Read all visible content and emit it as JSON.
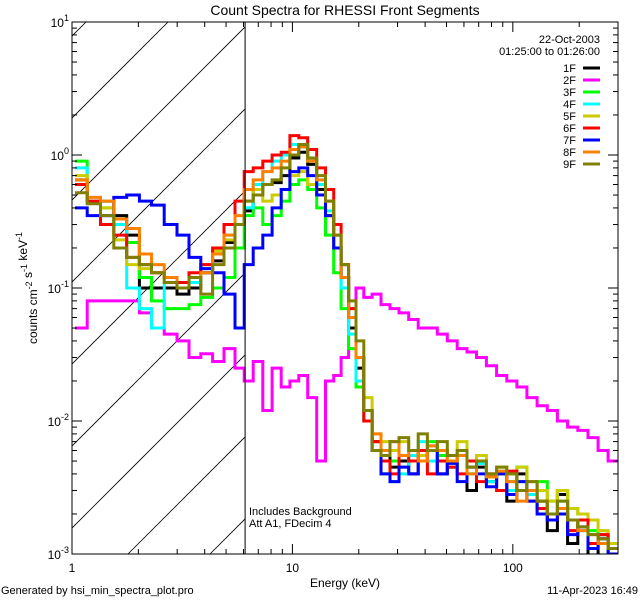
{
  "chart_data": {
    "type": "line",
    "title": "Count Spectra for RHESSI Front Segments",
    "xlabel": "Energy (keV)",
    "ylabel": {
      "parts": [
        [
          "counts cm",
          ""
        ],
        [
          "",
          "-2"
        ],
        [
          " s",
          ""
        ],
        [
          "",
          "-1"
        ],
        [
          " keV",
          ""
        ],
        [
          "",
          "-1"
        ]
      ]
    },
    "xscale": "log",
    "yscale": "log",
    "xlim": [
      1,
      300
    ],
    "ylim": [
      0.001,
      10
    ],
    "x_ticks": [
      {
        "value": 1,
        "label": "1"
      },
      {
        "value": 10,
        "label": "10"
      },
      {
        "value": 100,
        "label": "100"
      }
    ],
    "y_ticks": [
      {
        "value": 10,
        "base": "10",
        "exp": "1"
      },
      {
        "value": 1,
        "base": "10",
        "exp": "0"
      },
      {
        "value": 0.1,
        "base": "10",
        "exp": "-1"
      },
      {
        "value": 0.01,
        "base": "10",
        "exp": "-2"
      },
      {
        "value": 0.001,
        "base": "10",
        "exp": "-3"
      }
    ],
    "date": "22-Oct-2003",
    "time_range": "01:25:00 to 01:26:00",
    "annotations": [
      "Includes Background",
      "Att A1, FDecim  4"
    ],
    "hatched_below_energy": 6.1,
    "energy": [
      1.1,
      1.25,
      1.45,
      1.65,
      1.9,
      2.15,
      2.45,
      2.8,
      3.2,
      3.6,
      4.1,
      4.6,
      5.2,
      5.8,
      6.3,
      7,
      7.7,
      8.5,
      9.3,
      10.2,
      11.2,
      12.3,
      13.5,
      14.8,
      16,
      17.3,
      18.7,
      20.2,
      22,
      24,
      26.5,
      29,
      32,
      35.5,
      39,
      43,
      48,
      53,
      59,
      65,
      72,
      80,
      89,
      99,
      110,
      122,
      136,
      151,
      168,
      187,
      208,
      231,
      257,
      285
    ],
    "series": [
      {
        "name": "1F",
        "color": "#000000",
        "values": [
          0.65,
          0.45,
          0.45,
          0.35,
          0.25,
          0.1,
          0.1,
          0.1,
          0.09,
          0.1,
          0.13,
          0.16,
          0.22,
          0.3,
          0.38,
          0.55,
          0.6,
          0.62,
          0.7,
          0.95,
          1.05,
          0.85,
          0.55,
          0.35,
          0.2,
          0.12,
          0.05,
          0.025,
          0.012,
          0.007,
          0.006,
          0.0045,
          0.005,
          0.004,
          0.0055,
          0.006,
          0.004,
          0.0045,
          0.0055,
          0.003,
          0.0045,
          0.0035,
          0.004,
          0.0025,
          0.004,
          0.003,
          0.0025,
          0.0015,
          0.0028,
          0.0012,
          0.0018,
          0.0009,
          0.0014,
          0.001
        ]
      },
      {
        "name": "2F",
        "color": "#ff00ff",
        "values": [
          0.05,
          0.08,
          0.08,
          0.08,
          0.08,
          0.065,
          0.05,
          0.045,
          0.04,
          0.03,
          0.032,
          0.028,
          0.035,
          0.025,
          0.02,
          0.028,
          0.012,
          0.025,
          0.018,
          0.02,
          0.022,
          0.015,
          0.005,
          0.02,
          0.022,
          0.03,
          0.06,
          0.1,
          0.085,
          0.09,
          0.075,
          0.07,
          0.065,
          0.058,
          0.05,
          0.05,
          0.045,
          0.04,
          0.035,
          0.033,
          0.03,
          0.026,
          0.022,
          0.02,
          0.018,
          0.015,
          0.013,
          0.012,
          0.01,
          0.009,
          0.0085,
          0.0075,
          0.006,
          0.005
        ]
      },
      {
        "name": "3F",
        "color": "#00ff00",
        "values": [
          0.9,
          0.45,
          0.4,
          0.3,
          0.22,
          0.12,
          0.08,
          0.07,
          0.07,
          0.075,
          0.085,
          0.1,
          0.12,
          0.2,
          0.35,
          0.4,
          0.3,
          0.35,
          0.45,
          0.6,
          0.65,
          0.55,
          0.4,
          0.25,
          0.13,
          0.07,
          0.035,
          0.018,
          0.01,
          0.006,
          0.004,
          0.005,
          0.0045,
          0.0055,
          0.005,
          0.007,
          0.0055,
          0.005,
          0.006,
          0.004,
          0.005,
          0.0038,
          0.004,
          0.0035,
          0.0045,
          0.003,
          0.0035,
          0.0025,
          0.003,
          0.0022,
          0.002,
          0.0015,
          0.0013,
          0.001
        ]
      },
      {
        "name": "4F",
        "color": "#00ffff",
        "values": [
          0.8,
          0.45,
          0.45,
          0.3,
          0.1,
          0.07,
          0.05,
          0.11,
          0.1,
          0.11,
          0.14,
          0.18,
          0.25,
          0.3,
          0.4,
          0.6,
          0.75,
          0.9,
          1.0,
          1.2,
          1.15,
          0.9,
          0.6,
          0.38,
          0.2,
          0.1,
          0.045,
          0.02,
          0.01,
          0.006,
          0.005,
          0.0035,
          0.004,
          0.0055,
          0.007,
          0.005,
          0.006,
          0.0045,
          0.0055,
          0.004,
          0.0048,
          0.0035,
          0.0042,
          0.003,
          0.0035,
          0.0028,
          0.0022,
          0.002,
          0.0025,
          0.0018,
          0.0015,
          0.0012,
          0.0014,
          0.001
        ]
      },
      {
        "name": "5F",
        "color": "#cccc00",
        "values": [
          0.7,
          0.45,
          0.4,
          0.23,
          0.15,
          0.14,
          0.13,
          0.12,
          0.11,
          0.12,
          0.15,
          0.19,
          0.23,
          0.3,
          0.45,
          0.55,
          0.45,
          0.5,
          0.55,
          0.7,
          0.75,
          0.6,
          0.5,
          0.35,
          0.2,
          0.12,
          0.06,
          0.03,
          0.015,
          0.008,
          0.007,
          0.006,
          0.007,
          0.006,
          0.0055,
          0.0065,
          0.006,
          0.005,
          0.007,
          0.005,
          0.0055,
          0.004,
          0.0045,
          0.004,
          0.0045,
          0.0035,
          0.003,
          0.0025,
          0.003,
          0.0022,
          0.002,
          0.0018,
          0.0015,
          0.0012
        ]
      },
      {
        "name": "6F",
        "color": "#ff0000",
        "values": [
          0.6,
          0.45,
          0.3,
          0.25,
          0.17,
          0.15,
          0.13,
          0.12,
          0.11,
          0.13,
          0.15,
          0.2,
          0.3,
          0.45,
          0.75,
          0.8,
          0.9,
          1.0,
          1.05,
          1.4,
          1.35,
          1.1,
          0.8,
          0.55,
          0.3,
          0.15,
          0.07,
          0.03,
          0.01,
          0.007,
          0.005,
          0.004,
          0.0055,
          0.005,
          0.006,
          0.004,
          0.005,
          0.0045,
          0.004,
          0.005,
          0.0035,
          0.004,
          0.003,
          0.0042,
          0.003,
          0.0025,
          0.0022,
          0.0018,
          0.002,
          0.0015,
          0.0018,
          0.0012,
          0.0014,
          0.0011
        ]
      },
      {
        "name": "7F",
        "color": "#0000ff",
        "values": [
          0.4,
          0.35,
          0.35,
          0.48,
          0.5,
          0.45,
          0.42,
          0.3,
          0.25,
          0.17,
          0.14,
          0.13,
          0.09,
          0.05,
          0.15,
          0.2,
          0.25,
          0.4,
          0.55,
          0.75,
          0.8,
          0.7,
          0.5,
          0.35,
          0.2,
          0.12,
          0.06,
          0.03,
          0.012,
          0.006,
          0.004,
          0.0035,
          0.0045,
          0.004,
          0.005,
          0.006,
          0.004,
          0.0048,
          0.0035,
          0.0045,
          0.004,
          0.0032,
          0.004,
          0.0028,
          0.0035,
          0.0025,
          0.002,
          0.0018,
          0.002,
          0.0014,
          0.0016,
          0.0011,
          0.0013,
          0.001
        ]
      },
      {
        "name": "8F",
        "color": "#ff8000",
        "values": [
          0.65,
          0.48,
          0.45,
          0.33,
          0.28,
          0.18,
          0.15,
          0.12,
          0.1,
          0.12,
          0.13,
          0.18,
          0.25,
          0.35,
          0.55,
          0.65,
          0.75,
          0.8,
          0.9,
          1.1,
          1.15,
          0.9,
          0.65,
          0.45,
          0.25,
          0.12,
          0.06,
          0.03,
          0.012,
          0.008,
          0.006,
          0.007,
          0.0055,
          0.006,
          0.005,
          0.0065,
          0.006,
          0.005,
          0.0055,
          0.004,
          0.005,
          0.0038,
          0.0042,
          0.0035,
          0.0025,
          0.003,
          0.0025,
          0.002,
          0.0022,
          0.0018,
          0.0015,
          0.0014,
          0.0012,
          0.0011
        ]
      },
      {
        "name": "9F",
        "color": "#808000",
        "values": [
          0.52,
          0.43,
          0.35,
          0.2,
          0.17,
          0.15,
          0.13,
          0.11,
          0.1,
          0.12,
          0.09,
          0.15,
          0.2,
          0.3,
          0.45,
          0.5,
          0.6,
          0.65,
          0.8,
          1.0,
          1.2,
          0.95,
          0.7,
          0.45,
          0.25,
          0.15,
          0.08,
          0.04,
          0.012,
          0.006,
          0.0055,
          0.007,
          0.0075,
          0.006,
          0.008,
          0.006,
          0.007,
          0.0055,
          0.006,
          0.0045,
          0.005,
          0.004,
          0.0045,
          0.004,
          0.003,
          0.0035,
          0.0025,
          0.002,
          0.0025,
          0.0018,
          0.0016,
          0.0014,
          0.0013,
          0.0011
        ]
      }
    ]
  },
  "footer": {
    "generated_by": "Generated by hsi_min_spectra_plot.pro",
    "timestamp": "11-Apr-2023 16:49"
  }
}
